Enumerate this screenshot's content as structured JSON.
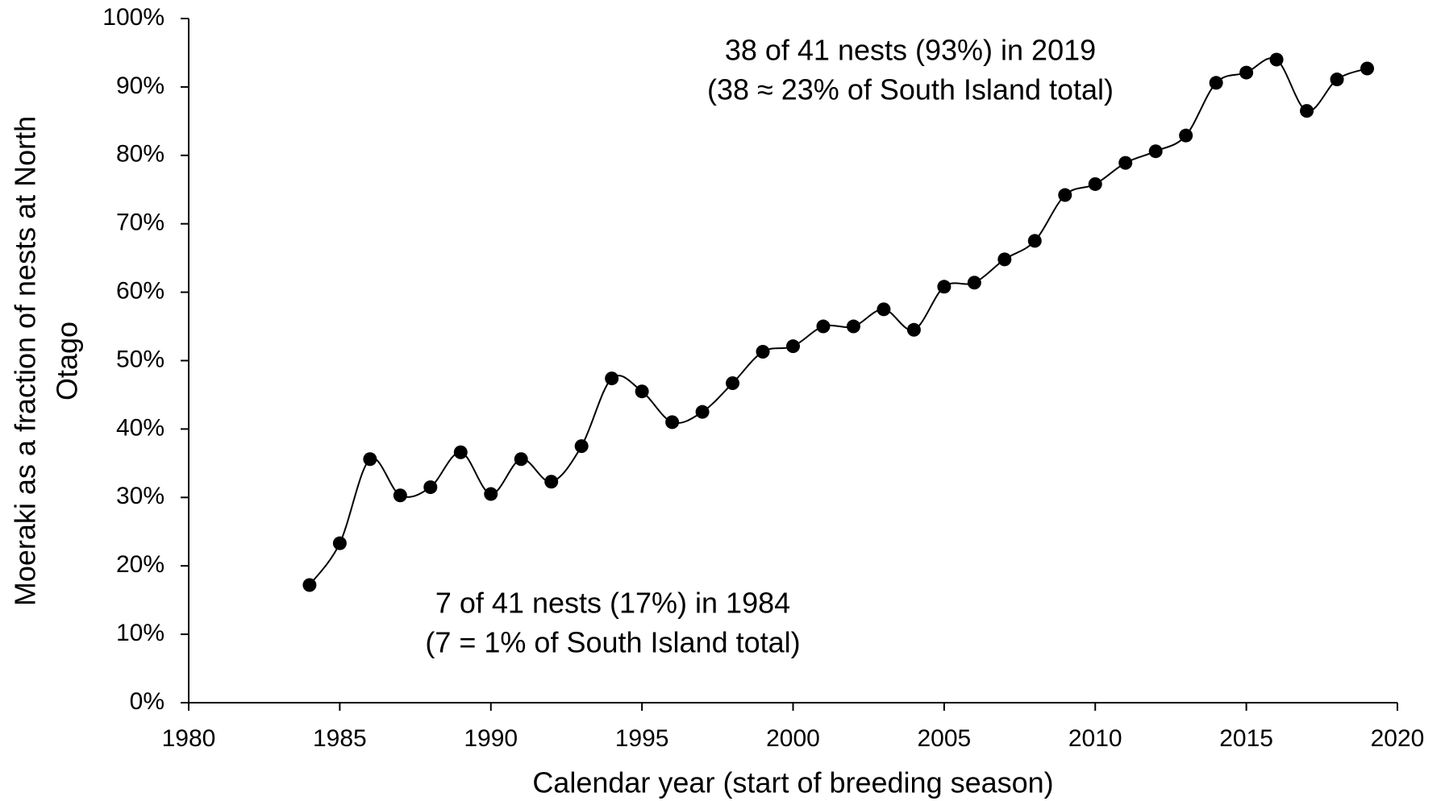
{
  "chart_data": {
    "type": "line",
    "xlabel": "Calendar year (start of breeding season)",
    "ylabel": [
      "Moeraki as a fraction of nests at North",
      "Otago"
    ],
    "annotations": [
      {
        "lines": [
          "38 of 41 nests (93%) in 2019",
          "(38 ≈ 23% of South Island total)"
        ]
      },
      {
        "lines": [
          "7 of 41 nests (17%) in 1984",
          "(7 = 1% of South Island total)"
        ]
      }
    ],
    "x": [
      1984,
      1985,
      1986,
      1987,
      1988,
      1989,
      1990,
      1991,
      1992,
      1993,
      1994,
      1995,
      1996,
      1997,
      1998,
      1999,
      2000,
      2001,
      2002,
      2003,
      2004,
      2005,
      2006,
      2007,
      2008,
      2009,
      2010,
      2011,
      2012,
      2013,
      2014,
      2015,
      2016,
      2017,
      2018,
      2019
    ],
    "series": [
      {
        "color": "#000000",
        "values": [
          17.2,
          23.3,
          35.6,
          30.3,
          31.5,
          36.6,
          30.5,
          35.6,
          32.3,
          37.5,
          47.4,
          45.5,
          41.0,
          42.5,
          46.7,
          51.3,
          52.1,
          55.0,
          55.0,
          57.5,
          54.5,
          60.8,
          61.4,
          64.8,
          67.5,
          74.2,
          75.8,
          78.9,
          80.6,
          82.9,
          90.6,
          92.1,
          94.0,
          86.5,
          91.1,
          92.7
        ]
      }
    ],
    "xlim": [
      1980,
      2020
    ],
    "xticks": [
      1980,
      1985,
      1990,
      1995,
      2000,
      2005,
      2010,
      2015,
      2020
    ],
    "ylim": [
      0,
      100
    ],
    "yticks": [
      {
        "value": 0,
        "label": "0%"
      },
      {
        "value": 10,
        "label": "10%"
      },
      {
        "value": 20,
        "label": "20%"
      },
      {
        "value": 30,
        "label": "30%"
      },
      {
        "value": 40,
        "label": "40%"
      },
      {
        "value": 50,
        "label": "50%"
      },
      {
        "value": 60,
        "label": "60%"
      },
      {
        "value": 70,
        "label": "70%"
      },
      {
        "value": 80,
        "label": "80%"
      },
      {
        "value": 90,
        "label": "90%"
      },
      {
        "value": 100,
        "label": "100%"
      }
    ],
    "smooth": true,
    "grid": false
  }
}
